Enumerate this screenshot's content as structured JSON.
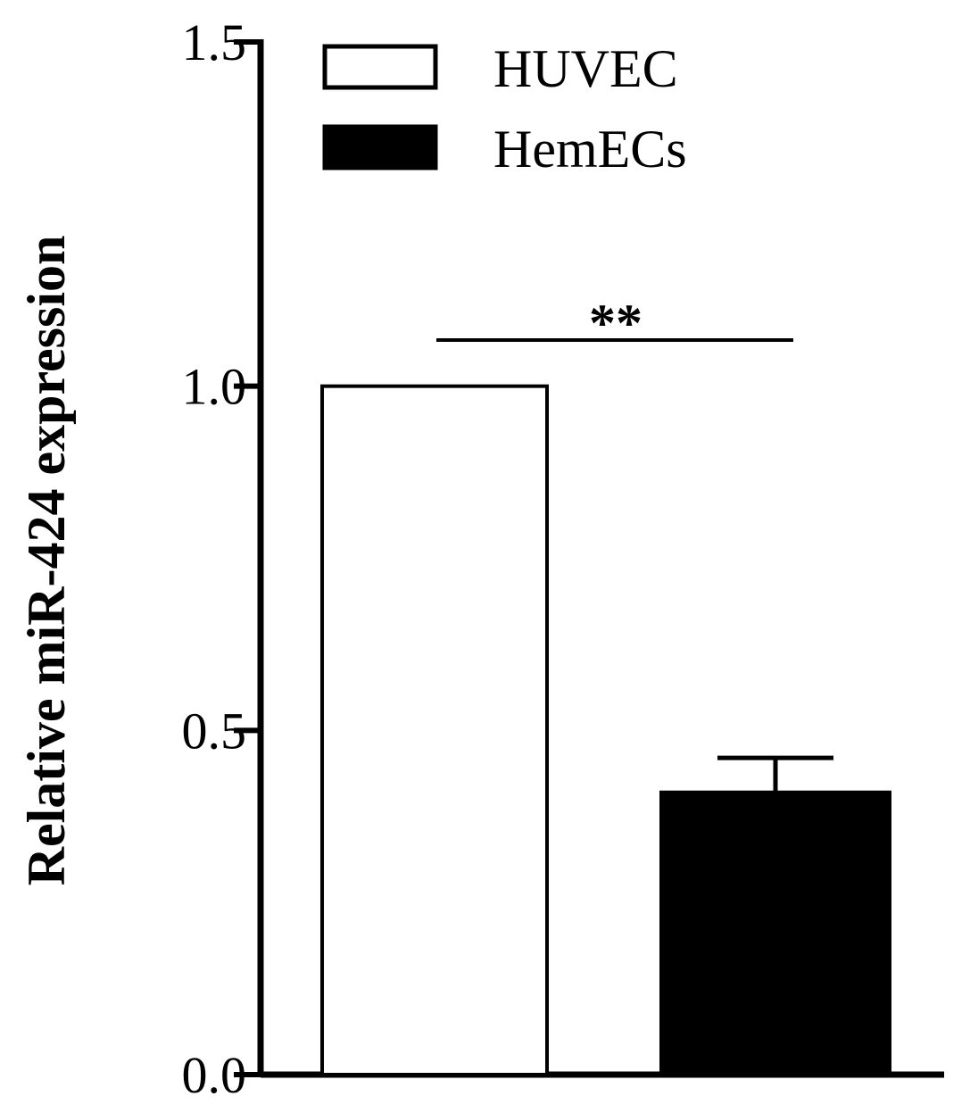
{
  "chart_data": {
    "type": "bar",
    "categories": [
      "HUVEC",
      "HemECs"
    ],
    "series": [
      {
        "name": "HUVEC",
        "values": [
          1.0,
          null
        ],
        "errors": [
          0,
          null
        ],
        "fill": "#ffffff",
        "stroke": "#000000"
      },
      {
        "name": "HemECs",
        "values": [
          null,
          0.41
        ],
        "errors": [
          null,
          0.05
        ],
        "fill": "#000000",
        "stroke": "#000000"
      }
    ],
    "title": "",
    "xlabel": "",
    "ylabel": "Relative miR-424 expression",
    "ylim": [
      0,
      1.5
    ],
    "yticks": [
      "0.0",
      "0.5",
      "1.0",
      "1.5"
    ],
    "grid": false,
    "legend_position": "top",
    "significance": {
      "between": [
        "HUVEC",
        "HemECs"
      ],
      "label": "**"
    }
  }
}
